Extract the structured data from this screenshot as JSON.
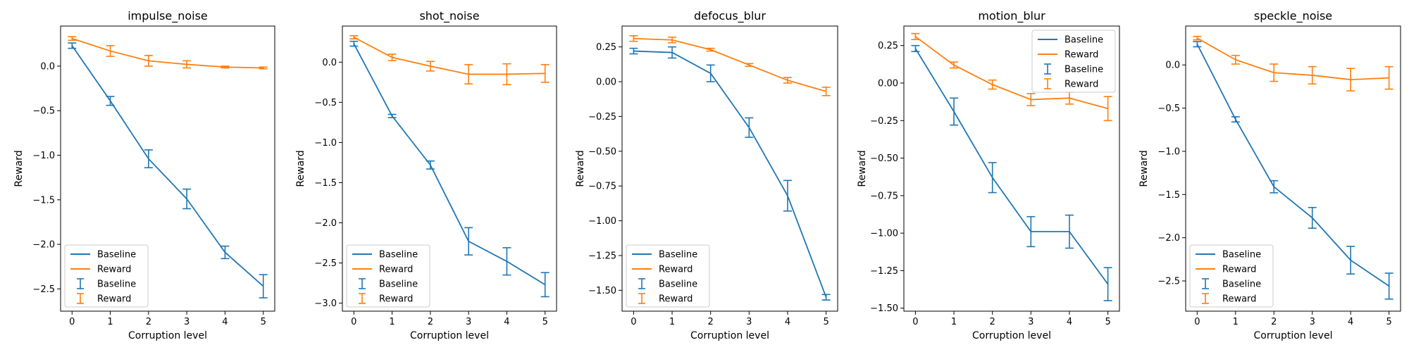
{
  "colors": {
    "baseline": "#1f77b4",
    "reward": "#ff7f0e"
  },
  "chart_data": [
    {
      "type": "line",
      "title": "impulse_noise",
      "xlabel": "Corruption level",
      "ylabel": "Reward",
      "x": [
        0,
        1,
        2,
        3,
        4,
        5
      ],
      "xlim": [
        -0.3,
        5.3
      ],
      "ylim": [
        -2.75,
        0.45
      ],
      "yticks": [
        0.0,
        -0.5,
        -1.0,
        -1.5,
        -2.0,
        -2.5
      ],
      "ytick_labels": [
        "0.0",
        "−0.5",
        "−1.0",
        "−1.5",
        "−2.0",
        "−2.5"
      ],
      "legend": "lower-left",
      "series": [
        {
          "name": "Baseline",
          "values": [
            0.23,
            -0.39,
            -1.04,
            -1.49,
            -2.09,
            -2.47
          ],
          "errors": [
            0.03,
            0.05,
            0.1,
            0.11,
            0.07,
            0.13
          ]
        },
        {
          "name": "Reward",
          "values": [
            0.31,
            0.17,
            0.06,
            0.02,
            -0.01,
            -0.02
          ],
          "errors": [
            0.02,
            0.06,
            0.06,
            0.04,
            0.01,
            0.01
          ]
        }
      ]
    },
    {
      "type": "line",
      "title": "shot_noise",
      "xlabel": "Corruption level",
      "ylabel": "Reward",
      "x": [
        0,
        1,
        2,
        3,
        4,
        5
      ],
      "xlim": [
        -0.3,
        5.3
      ],
      "ylim": [
        -3.1,
        0.45
      ],
      "yticks": [
        0.0,
        -0.5,
        -1.0,
        -1.5,
        -2.0,
        -2.5,
        -3.0
      ],
      "ytick_labels": [
        "0.0",
        "−0.5",
        "−1.0",
        "−1.5",
        "−2.0",
        "−2.5",
        "−3.0"
      ],
      "legend": "lower-left",
      "series": [
        {
          "name": "Baseline",
          "values": [
            0.23,
            -0.67,
            -1.28,
            -2.23,
            -2.48,
            -2.77
          ],
          "errors": [
            0.03,
            0.02,
            0.05,
            0.17,
            0.17,
            0.15
          ]
        },
        {
          "name": "Reward",
          "values": [
            0.31,
            0.06,
            -0.05,
            -0.15,
            -0.15,
            -0.14
          ],
          "errors": [
            0.02,
            0.04,
            0.06,
            0.12,
            0.13,
            0.11
          ]
        }
      ]
    },
    {
      "type": "line",
      "title": "defocus_blur",
      "xlabel": "Corruption level",
      "ylabel": "Reward",
      "x": [
        0,
        1,
        2,
        3,
        4,
        5
      ],
      "xlim": [
        -0.3,
        5.3
      ],
      "ylim": [
        -1.65,
        0.4
      ],
      "yticks": [
        0.25,
        0.0,
        -0.25,
        -0.5,
        -0.75,
        -1.0,
        -1.25,
        -1.5
      ],
      "ytick_labels": [
        "0.25",
        "0.00",
        "−0.25",
        "−0.50",
        "−0.75",
        "−1.00",
        "−1.25",
        "−1.50"
      ],
      "legend": "lower-left",
      "series": [
        {
          "name": "Baseline",
          "values": [
            0.22,
            0.21,
            0.06,
            -0.33,
            -0.82,
            -1.55
          ],
          "errors": [
            0.02,
            0.04,
            0.06,
            0.07,
            0.11,
            0.02
          ]
        },
        {
          "name": "Reward",
          "values": [
            0.31,
            0.3,
            0.23,
            0.12,
            0.01,
            -0.07
          ],
          "errors": [
            0.02,
            0.02,
            0.01,
            0.01,
            0.02,
            0.03
          ]
        }
      ]
    },
    {
      "type": "line",
      "title": "motion_blur",
      "xlabel": "Corruption level",
      "ylabel": "Reward",
      "x": [
        0,
        1,
        2,
        3,
        4,
        5
      ],
      "xlim": [
        -0.3,
        5.3
      ],
      "ylim": [
        -1.52,
        0.38
      ],
      "yticks": [
        0.25,
        0.0,
        -0.25,
        -0.5,
        -0.75,
        -1.0,
        -1.25,
        -1.5
      ],
      "ytick_labels": [
        "0.25",
        "0.00",
        "−0.25",
        "−0.50",
        "−0.75",
        "−1.00",
        "−1.25",
        "−1.50"
      ],
      "legend": "top-right",
      "series": [
        {
          "name": "Baseline",
          "values": [
            0.23,
            -0.19,
            -0.63,
            -0.99,
            -0.99,
            -1.34
          ],
          "errors": [
            0.02,
            0.09,
            0.1,
            0.1,
            0.11,
            0.11
          ]
        },
        {
          "name": "Reward",
          "values": [
            0.31,
            0.12,
            -0.01,
            -0.11,
            -0.1,
            -0.17
          ],
          "errors": [
            0.02,
            0.02,
            0.03,
            0.04,
            0.04,
            0.08
          ]
        }
      ]
    },
    {
      "type": "line",
      "title": "speckle_noise",
      "xlabel": "Corruption level",
      "ylabel": "Reward",
      "x": [
        0,
        1,
        2,
        3,
        4,
        5
      ],
      "xlim": [
        -0.3,
        5.3
      ],
      "ylim": [
        -2.85,
        0.45
      ],
      "yticks": [
        0.0,
        -0.5,
        -1.0,
        -1.5,
        -2.0,
        -2.5
      ],
      "ytick_labels": [
        "0.0",
        "−0.5",
        "−1.0",
        "−1.5",
        "−2.0",
        "−2.5"
      ],
      "legend": "lower-left",
      "series": [
        {
          "name": "Baseline",
          "values": [
            0.24,
            -0.63,
            -1.41,
            -1.77,
            -2.26,
            -2.56
          ],
          "errors": [
            0.03,
            0.03,
            0.07,
            0.12,
            0.16,
            0.15
          ]
        },
        {
          "name": "Reward",
          "values": [
            0.31,
            0.06,
            -0.09,
            -0.12,
            -0.17,
            -0.15
          ],
          "errors": [
            0.02,
            0.05,
            0.1,
            0.1,
            0.13,
            0.13
          ]
        }
      ]
    }
  ]
}
